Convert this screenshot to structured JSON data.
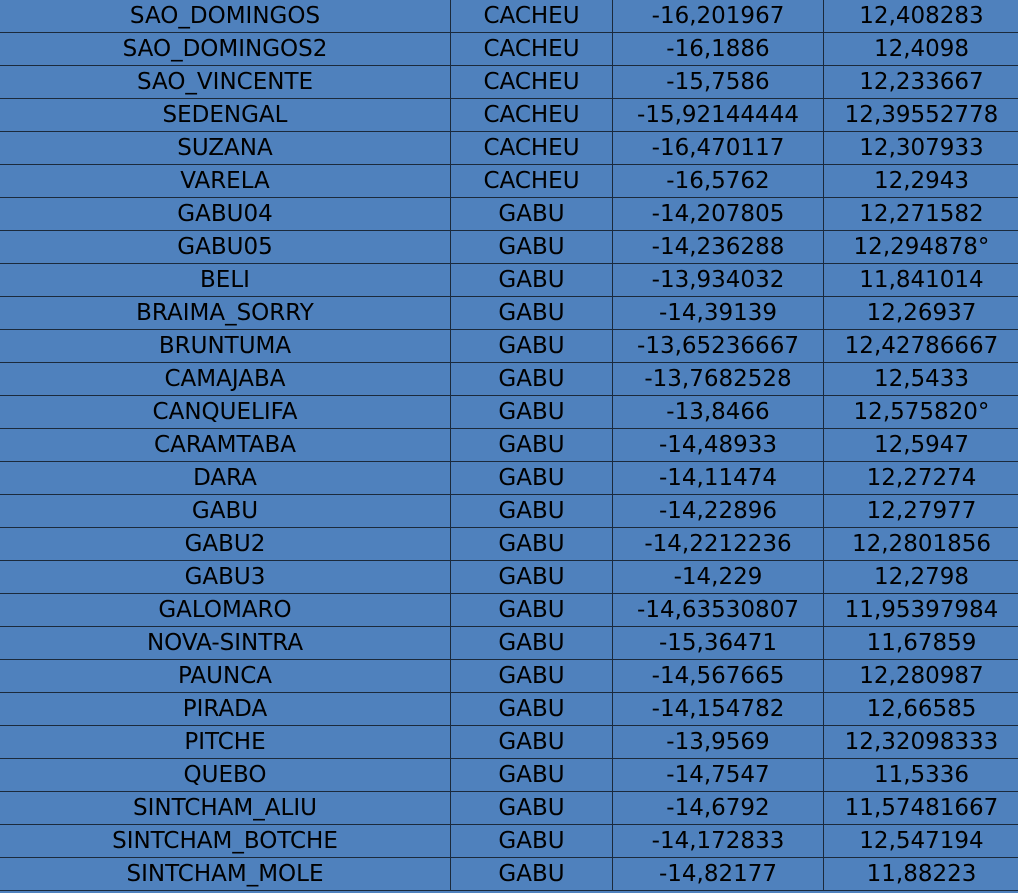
{
  "table": {
    "rows": [
      [
        "SAO_DOMINGOS",
        "CACHEU",
        "-16,201967",
        "12,408283"
      ],
      [
        "SAO_DOMINGOS2",
        "CACHEU",
        "-16,1886",
        "12,4098"
      ],
      [
        "SAO_VINCENTE",
        "CACHEU",
        "-15,7586",
        "12,233667"
      ],
      [
        "SEDENGAL",
        "CACHEU",
        "-15,92144444",
        "12,39552778"
      ],
      [
        "SUZANA",
        "CACHEU",
        "-16,470117",
        "12,307933"
      ],
      [
        "VARELA",
        "CACHEU",
        "-16,5762",
        "12,2943"
      ],
      [
        "GABU04",
        "GABU",
        "-14,207805",
        "12,271582"
      ],
      [
        "GABU05",
        "GABU",
        "-14,236288",
        "12,294878°"
      ],
      [
        "BELI",
        "GABU",
        "-13,934032",
        "11,841014"
      ],
      [
        "BRAIMA_SORRY",
        "GABU",
        "-14,39139",
        "12,26937"
      ],
      [
        "BRUNTUMA",
        "GABU",
        "-13,65236667",
        "12,42786667"
      ],
      [
        "CAMAJABA",
        "GABU",
        "-13,7682528",
        "12,5433"
      ],
      [
        "CANQUELIFA",
        "GABU",
        "-13,8466",
        "12,575820°"
      ],
      [
        "CARAMTABA",
        "GABU",
        "-14,48933",
        "12,5947"
      ],
      [
        "DARA",
        "GABU",
        "-14,11474",
        "12,27274"
      ],
      [
        "GABU",
        "GABU",
        "-14,22896",
        "12,27977"
      ],
      [
        "GABU2",
        "GABU",
        "-14,2212236",
        "12,2801856"
      ],
      [
        "GABU3",
        "GABU",
        "-14,229",
        "12,2798"
      ],
      [
        "GALOMARO",
        "GABU",
        "-14,63530807",
        "11,95397984"
      ],
      [
        "NOVA-SINTRA",
        "GABU",
        "-15,36471",
        "11,67859"
      ],
      [
        "PAUNCA",
        "GABU",
        "-14,567665",
        "12,280987"
      ],
      [
        "PIRADA",
        "GABU",
        "-14,154782",
        "12,66585"
      ],
      [
        "PITCHE",
        "GABU",
        "-13,9569",
        "12,32098333"
      ],
      [
        "QUEBO",
        "GABU",
        "-14,7547",
        "11,5336"
      ],
      [
        "SINTCHAM_ALIU",
        "GABU",
        "-14,6792",
        "11,57481667"
      ],
      [
        "SINTCHAM_BOTCHE",
        "GABU",
        "-14,172833",
        "12,547194"
      ],
      [
        "SINTCHAM_MOLE",
        "GABU",
        "-14,82177",
        "11,88223"
      ]
    ]
  },
  "colors": {
    "cell_background": "#4f81bd",
    "grid": "#1b2a3c"
  }
}
